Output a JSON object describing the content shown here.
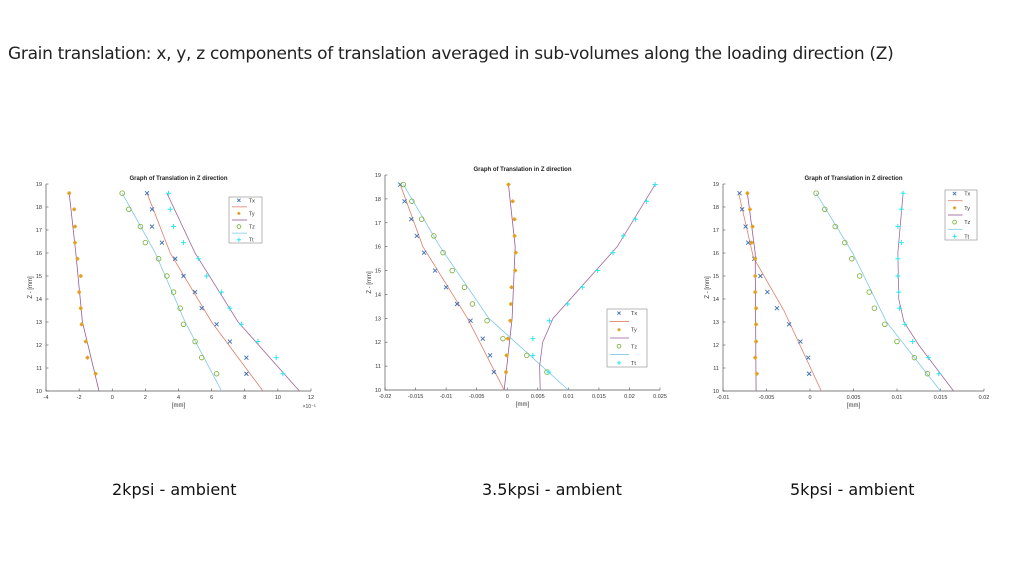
{
  "slide": {
    "heading": "Grain translation: x, y, z components of translation averaged in sub-volumes along the loading direction (Z)",
    "captions": [
      "2kpsi - ambient",
      "3.5kpsi - ambient",
      "5kpsi - ambient"
    ]
  },
  "series_style": {
    "Tx": {
      "marker": "x",
      "marker_color": "#3B6FB6",
      "fit_color": "#E0806A"
    },
    "Ty": {
      "marker": "asterisk",
      "marker_color": "#EDB120",
      "fit_color": "#9A5A9A"
    },
    "Tz": {
      "marker": "circle",
      "marker_color": "#77AC30",
      "fit_color": "#7FC8E8"
    },
    "Tt": {
      "marker": "plus",
      "marker_color": "#2EE6F0",
      "fit_color": "#A06A9A"
    }
  },
  "chart_data": [
    {
      "type": "scatter",
      "title": "Graph of Translation in Z direction",
      "xlabel": "[mm]",
      "ylabel": "Z - [mm]",
      "x_multiplier_label": "×10⁻³",
      "xlim": [
        -4,
        12
      ],
      "ylim": [
        10,
        19
      ],
      "xticks": [
        -4,
        -2,
        0,
        2,
        4,
        6,
        8,
        10,
        12
      ],
      "xtick_labels": [
        "-4",
        "-2",
        "0",
        "2",
        "4",
        "6",
        "8",
        "10",
        "12"
      ],
      "yticks": [
        10,
        11,
        12,
        13,
        14,
        15,
        16,
        17,
        18,
        19
      ],
      "legend": [
        "Tx",
        "Ty",
        "Tz",
        "Tt"
      ],
      "legend_placement": "top-right",
      "z": [
        18.6,
        17.9,
        17.15,
        16.45,
        15.75,
        15.0,
        14.3,
        13.6,
        12.9,
        12.15,
        11.45,
        10.75
      ],
      "series": [
        {
          "name": "Tx",
          "x": [
            2.1,
            2.4,
            2.4,
            3.0,
            3.8,
            4.3,
            5.0,
            5.4,
            6.3,
            7.1,
            8.1,
            8.1
          ],
          "fit": [
            [
              2.1,
              18.6
            ],
            [
              3.5,
              16
            ],
            [
              6.0,
              13
            ],
            [
              9.1,
              10
            ]
          ]
        },
        {
          "name": "Ty",
          "x": [
            -2.6,
            -2.3,
            -2.25,
            -2.25,
            -2.1,
            -1.9,
            -2.0,
            -1.9,
            -1.85,
            -1.6,
            -1.5,
            -1.0
          ],
          "fit": [
            [
              -2.6,
              18.6
            ],
            [
              -2.2,
              16
            ],
            [
              -1.8,
              13
            ],
            [
              -0.8,
              10
            ]
          ]
        },
        {
          "name": "Tz",
          "x": [
            0.6,
            1.0,
            1.7,
            2.0,
            2.8,
            3.3,
            3.7,
            4.1,
            4.3,
            5.0,
            5.4,
            6.3
          ],
          "fit": [
            [
              0.6,
              18.6
            ],
            [
              2.6,
              16
            ],
            [
              4.4,
              13
            ],
            [
              6.6,
              10
            ]
          ]
        },
        {
          "name": "Tt",
          "x": [
            3.4,
            3.5,
            3.7,
            4.3,
            5.2,
            5.7,
            6.6,
            7.1,
            7.8,
            8.8,
            9.9,
            10.3
          ],
          "fit": [
            [
              3.3,
              18.6
            ],
            [
              5.0,
              16
            ],
            [
              7.6,
              13
            ],
            [
              11.3,
              10
            ]
          ]
        }
      ]
    },
    {
      "type": "scatter",
      "title": "Graph of Translation in Z direction",
      "xlabel": "[mm]",
      "ylabel": "Z - [mm]",
      "xlim": [
        -0.02,
        0.025
      ],
      "ylim": [
        10,
        19
      ],
      "xticks": [
        -0.02,
        -0.015,
        -0.01,
        -0.005,
        0,
        0.005,
        0.01,
        0.015,
        0.02,
        0.025
      ],
      "xtick_labels": [
        "-0.02",
        "-0.015",
        "-0.01",
        "-0.005",
        "0",
        "0.005",
        "0.01",
        "0.015",
        "0.02",
        "0.025"
      ],
      "yticks": [
        10,
        11,
        12,
        13,
        14,
        15,
        16,
        17,
        18,
        19
      ],
      "legend": [
        "Tx",
        "Ty",
        "Tz",
        "Tt"
      ],
      "legend_placement": "bottom-right",
      "z": [
        18.6,
        17.9,
        17.15,
        16.45,
        15.75,
        15.0,
        14.3,
        13.6,
        12.9,
        12.15,
        11.45,
        10.75
      ],
      "series": [
        {
          "name": "Tx",
          "x": [
            -0.0175,
            -0.0168,
            -0.0157,
            -0.0148,
            -0.0136,
            -0.0118,
            -0.01,
            -0.0082,
            -0.006,
            -0.004,
            -0.0028,
            -0.0022
          ],
          "fit": [
            [
              -0.0175,
              18.6
            ],
            [
              -0.0138,
              16
            ],
            [
              -0.0065,
              13
            ],
            [
              -0.0005,
              10
            ]
          ]
        },
        {
          "name": "Ty",
          "x": [
            0.0002,
            0.0009,
            0.0012,
            0.0012,
            0.0014,
            0.0013,
            0.0007,
            0.0006,
            0.0005,
            0.0001,
            -0.0001,
            -0.0002
          ],
          "fit": [
            [
              0.0002,
              18.6
            ],
            [
              0.0013,
              16
            ],
            [
              0.0008,
              13
            ],
            [
              -0.0005,
              10
            ]
          ]
        },
        {
          "name": "Tz",
          "x": [
            -0.017,
            -0.0156,
            -0.014,
            -0.012,
            -0.0105,
            -0.009,
            -0.007,
            -0.0057,
            -0.0033,
            -0.0007,
            0.0032,
            0.0065
          ],
          "fit": [
            [
              -0.017,
              18.6
            ],
            [
              -0.011,
              16
            ],
            [
              -0.003,
              13
            ],
            [
              0.01,
              10
            ]
          ]
        },
        {
          "name": "Tt",
          "x": [
            0.0242,
            0.0228,
            0.021,
            0.019,
            0.0173,
            0.0148,
            0.0123,
            0.0099,
            0.0069,
            0.0042,
            0.0042,
            0.0068
          ],
          "fit": [
            [
              0.0242,
              18.6
            ],
            [
              0.018,
              16
            ],
            [
              0.011,
              14
            ],
            [
              0.0075,
              13
            ],
            [
              0.0058,
              12
            ],
            [
              0.0053,
              11
            ],
            [
              0.0054,
              10
            ]
          ]
        }
      ]
    },
    {
      "type": "scatter",
      "title": "Graph of Translation in Z direction",
      "xlabel": "[mm]",
      "ylabel": "Z - [mm]",
      "xlim": [
        -0.01,
        0.02
      ],
      "ylim": [
        10,
        19
      ],
      "xticks": [
        -0.01,
        -0.005,
        0,
        0.005,
        0.01,
        0.015,
        0.02
      ],
      "xtick_labels": [
        "-0.01",
        "-0.005",
        "0",
        "0.005",
        "0.01",
        "0.015",
        "0.02"
      ],
      "yticks": [
        10,
        11,
        12,
        13,
        14,
        15,
        16,
        17,
        18,
        19
      ],
      "legend": [
        "Tx",
        "Ty",
        "Tz",
        "Tt"
      ],
      "legend_placement": "top-right",
      "z": [
        18.6,
        17.9,
        17.15,
        16.45,
        15.75,
        15.0,
        14.3,
        13.6,
        12.9,
        12.15,
        11.45,
        10.75
      ],
      "series": [
        {
          "name": "Tx",
          "x": [
            -0.0081,
            -0.0078,
            -0.0074,
            -0.0071,
            -0.0064,
            -0.0057,
            -0.0049,
            -0.0038,
            -0.0024,
            -0.0011,
            -0.0002,
            -0.0001
          ],
          "fit": [
            [
              -0.0082,
              18.6
            ],
            [
              -0.0065,
              15.8
            ],
            [
              -0.003,
              13.5
            ],
            [
              0.0013,
              10
            ]
          ]
        },
        {
          "name": "Ty",
          "x": [
            -0.0072,
            -0.0069,
            -0.0066,
            -0.0067,
            -0.0063,
            -0.0063,
            -0.0063,
            -0.0062,
            -0.0062,
            -0.0062,
            -0.0063,
            -0.0061
          ],
          "fit": [
            [
              -0.0072,
              18.6
            ],
            [
              -0.0063,
              16
            ],
            [
              -0.0062,
              10
            ]
          ]
        },
        {
          "name": "Tz",
          "x": [
            0.0007,
            0.0017,
            0.0029,
            0.004,
            0.0048,
            0.0057,
            0.0068,
            0.0074,
            0.0086,
            0.01,
            0.012,
            0.0135
          ],
          "fit": [
            [
              0.0007,
              18.6
            ],
            [
              0.0049,
              16
            ],
            [
              0.0088,
              13
            ],
            [
              0.015,
              10
            ]
          ]
        },
        {
          "name": "Tt",
          "x": [
            0.0107,
            0.0105,
            0.0101,
            0.0105,
            0.0101,
            0.0101,
            0.0102,
            0.0103,
            0.0109,
            0.0118,
            0.0136,
            0.0148
          ],
          "fit": [
            [
              0.0107,
              18.6
            ],
            [
              0.0101,
              16
            ],
            [
              0.0102,
              14
            ],
            [
              0.0108,
              13
            ],
            [
              0.0125,
              12
            ],
            [
              0.0165,
              10
            ]
          ]
        }
      ]
    }
  ]
}
